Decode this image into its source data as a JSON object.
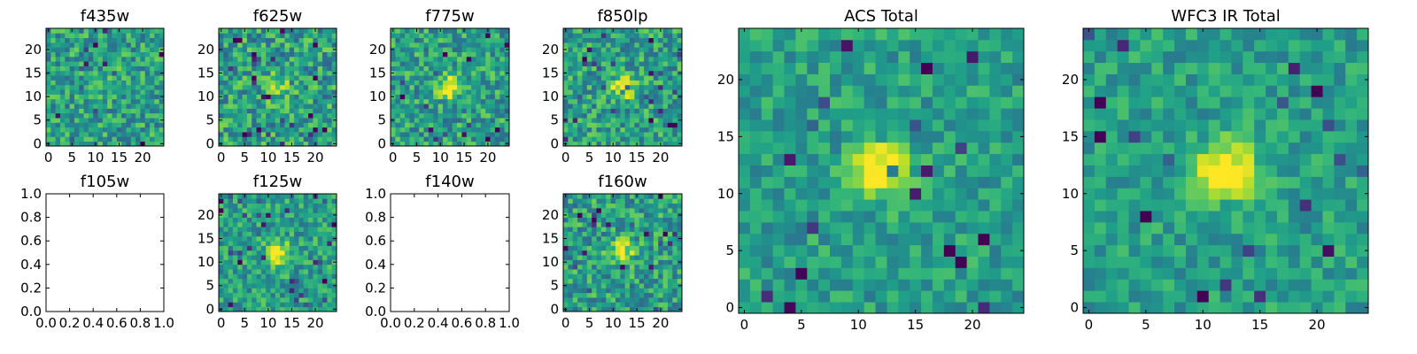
{
  "figure": {
    "colormap": "viridis",
    "colors": {
      "low": "#440154",
      "mid": "#21918c",
      "high": "#fde725",
      "axis": "#000000",
      "background": "#ffffff"
    }
  },
  "chart_data": [
    {
      "type": "heatmap",
      "title": "f435w",
      "empty": false,
      "grid_size": 25,
      "source_center": [
        15,
        13
      ],
      "source_strength": 0.15,
      "noise": 0.45,
      "seed": 435,
      "xlim": [
        -0.5,
        24.5
      ],
      "ylim": [
        -0.5,
        24.5
      ],
      "xticks": [
        "0",
        "5",
        "10",
        "15",
        "20"
      ],
      "yticks": [
        "0",
        "5",
        "10",
        "15",
        "20"
      ]
    },
    {
      "type": "heatmap",
      "title": "f625w",
      "empty": false,
      "grid_size": 25,
      "source_center": [
        12,
        12
      ],
      "source_strength": 0.35,
      "noise": 0.5,
      "seed": 625,
      "xlim": [
        -0.5,
        24.5
      ],
      "ylim": [
        -0.5,
        24.5
      ],
      "xticks": [
        "0",
        "5",
        "10",
        "15",
        "20"
      ],
      "yticks": [
        "0",
        "5",
        "10",
        "15",
        "20"
      ]
    },
    {
      "type": "heatmap",
      "title": "f775w",
      "empty": false,
      "grid_size": 25,
      "source_center": [
        12,
        12
      ],
      "source_strength": 0.55,
      "noise": 0.45,
      "seed": 775,
      "xlim": [
        -0.5,
        24.5
      ],
      "ylim": [
        -0.5,
        24.5
      ],
      "xticks": [
        "0",
        "5",
        "10",
        "15",
        "20"
      ],
      "yticks": [
        "0",
        "5",
        "10",
        "15",
        "20"
      ]
    },
    {
      "type": "heatmap",
      "title": "f850lp",
      "empty": false,
      "grid_size": 25,
      "source_center": [
        12,
        12
      ],
      "source_strength": 0.55,
      "noise": 0.45,
      "seed": 850,
      "xlim": [
        -0.5,
        24.5
      ],
      "ylim": [
        -0.5,
        24.5
      ],
      "xticks": [
        "0",
        "5",
        "10",
        "15",
        "20"
      ],
      "yticks": [
        "0",
        "5",
        "10",
        "15",
        "20"
      ]
    },
    {
      "type": "blank",
      "title": "f105w",
      "empty": true,
      "xlim": [
        0.0,
        1.0
      ],
      "ylim": [
        0.0,
        1.0
      ],
      "xticks": [
        "0.0",
        "0.2",
        "0.4",
        "0.6",
        "0.8",
        "1.0"
      ],
      "yticks": [
        "0.0",
        "0.2",
        "0.4",
        "0.6",
        "0.8",
        "1.0"
      ]
    },
    {
      "type": "heatmap",
      "title": "f125w",
      "empty": false,
      "grid_size": 25,
      "source_center": [
        12,
        12
      ],
      "source_strength": 0.55,
      "noise": 0.4,
      "seed": 125,
      "xlim": [
        -0.5,
        24.5
      ],
      "ylim": [
        -0.5,
        24.5
      ],
      "xticks": [
        "0",
        "5",
        "10",
        "15",
        "20"
      ],
      "yticks": [
        "0",
        "5",
        "10",
        "15",
        "20"
      ]
    },
    {
      "type": "blank",
      "title": "f140w",
      "empty": true,
      "xlim": [
        0.0,
        1.0
      ],
      "ylim": [
        0.0,
        1.0
      ],
      "xticks": [
        "0.0",
        "0.2",
        "0.4",
        "0.6",
        "0.8",
        "1.0"
      ],
      "yticks": [
        "0.0",
        "0.2",
        "0.4",
        "0.6",
        "0.8",
        "1.0"
      ]
    },
    {
      "type": "heatmap",
      "title": "f160w",
      "empty": false,
      "grid_size": 25,
      "source_center": [
        12,
        12
      ],
      "source_strength": 0.5,
      "noise": 0.45,
      "seed": 160,
      "xlim": [
        -0.5,
        24.5
      ],
      "ylim": [
        -0.5,
        24.5
      ],
      "xticks": [
        "0",
        "5",
        "10",
        "15",
        "20"
      ],
      "yticks": [
        "0",
        "5",
        "10",
        "15",
        "20"
      ]
    },
    {
      "type": "heatmap",
      "title": "ACS Total",
      "empty": false,
      "grid_size": 25,
      "source_center": [
        12,
        12
      ],
      "source_strength": 0.55,
      "noise": 0.32,
      "seed": 1000,
      "xlim": [
        -0.5,
        24.5
      ],
      "ylim": [
        -0.5,
        24.5
      ],
      "xticks": [
        "0",
        "5",
        "10",
        "15",
        "20"
      ],
      "yticks": [
        "0",
        "5",
        "10",
        "15",
        "20"
      ]
    },
    {
      "type": "heatmap",
      "title": "WFC3 IR Total",
      "empty": false,
      "grid_size": 25,
      "source_center": [
        12,
        12
      ],
      "source_strength": 0.6,
      "noise": 0.3,
      "seed": 2000,
      "xlim": [
        -0.5,
        24.5
      ],
      "ylim": [
        -0.5,
        24.5
      ],
      "xticks": [
        "0",
        "5",
        "10",
        "15",
        "20"
      ],
      "yticks": [
        "0",
        "5",
        "10",
        "15",
        "20"
      ]
    }
  ]
}
